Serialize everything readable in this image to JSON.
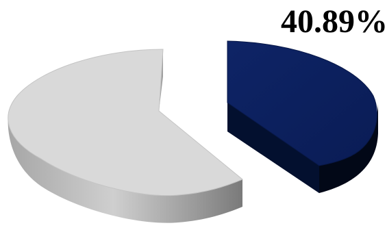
{
  "chart_data": {
    "type": "pie",
    "style": "3d-exploded",
    "slices": [
      {
        "value": 40.89,
        "label": "40.89%",
        "color": "#0c1f5c"
      },
      {
        "value": 59.11,
        "label": "",
        "color": "#d9d9d9"
      }
    ],
    "data_label": "40.89%",
    "title": "",
    "legend": "none"
  },
  "colors": {
    "highlight_slice": "#0c1f5c",
    "highlight_side": "#020817",
    "other_slice": "#d9d9d9",
    "other_side": "#8a8a8a",
    "label_text": "#000000"
  }
}
